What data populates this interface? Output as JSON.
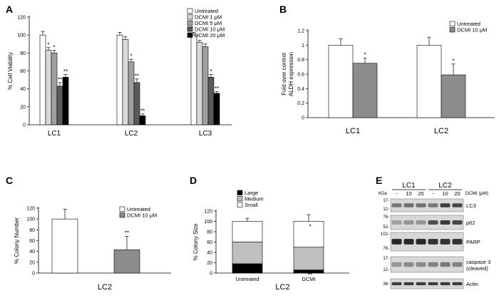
{
  "chart_data": [
    {
      "panel": "A",
      "type": "bar",
      "ylabel": "% Cell Viability",
      "ylim": [
        0,
        120
      ],
      "yticks": [
        0,
        20,
        40,
        60,
        80,
        100,
        120
      ],
      "categories": [
        "LC1",
        "LC2",
        "LC3"
      ],
      "series": [
        {
          "name": "Untreated",
          "color": "#ffffff",
          "values": [
            100,
            100,
            100
          ],
          "errors": [
            4,
            3,
            3
          ]
        },
        {
          "name": "DCMI 1 μM",
          "color": "#d9d9d9",
          "values": [
            83,
            95,
            92
          ],
          "errors": [
            3,
            3,
            2
          ]
        },
        {
          "name": "DCMI 5 μM",
          "color": "#a0a0a0",
          "values": [
            80,
            70,
            87
          ],
          "errors": [
            3,
            3,
            3
          ]
        },
        {
          "name": "DCMI 10 μM",
          "color": "#5a5a5a",
          "values": [
            43,
            47,
            53
          ],
          "errors": [
            4,
            4,
            3
          ]
        },
        {
          "name": "DCMI 20 μM",
          "color": "#000000",
          "values": [
            53,
            10,
            35
          ],
          "errors": [
            3,
            2,
            2
          ]
        }
      ],
      "stars": [
        [
          "",
          "*",
          "*",
          "**",
          "**"
        ],
        [
          "",
          "",
          "*",
          "**",
          "**"
        ],
        [
          "",
          "",
          "",
          "*",
          "**"
        ]
      ],
      "legend": "top-right"
    },
    {
      "panel": "B",
      "type": "bar",
      "ylabel": "Fold over control ALDH expression",
      "ylim": [
        0,
        1.2
      ],
      "yticks": [
        0,
        0.2,
        0.4,
        0.6,
        0.8,
        1,
        1.2
      ],
      "ytick_labels": [
        "0",
        "0.2",
        "0.4",
        "0.6",
        "0.8",
        "1",
        "1.2"
      ],
      "categories": [
        "LC1",
        "LC2"
      ],
      "series": [
        {
          "name": "Untreated",
          "color": "#ffffff",
          "values": [
            1.0,
            1.0
          ],
          "errors": [
            0.09,
            0.11
          ]
        },
        {
          "name": "DCMI 10 μM",
          "color": "#8c8c8c",
          "values": [
            0.75,
            0.59
          ],
          "errors": [
            0.07,
            0.15
          ]
        }
      ],
      "stars": [
        [
          "",
          "*"
        ],
        [
          "",
          "*"
        ]
      ],
      "legend": "top-right"
    },
    {
      "panel": "C",
      "type": "bar",
      "ylabel": "% Colony Number",
      "xlabel": "LC2",
      "ylim": [
        0,
        120
      ],
      "yticks": [
        0,
        20,
        40,
        60,
        80,
        100,
        120
      ],
      "categories": [
        "Untreated",
        "DCMI 10 μM"
      ],
      "values": [
        100,
        43
      ],
      "errors": [
        18,
        25
      ],
      "colors": [
        "#ffffff",
        "#8c8c8c"
      ],
      "stars": [
        "",
        "**"
      ],
      "legend_labels": [
        "Untreated",
        "DCMI 10 μM"
      ],
      "legend": "top-right"
    },
    {
      "panel": "D",
      "type": "bar",
      "stacked": true,
      "ylabel": "% Colony Size",
      "xlabel": "LC2",
      "ylim": [
        0,
        120
      ],
      "yticks": [
        0,
        20,
        40,
        60,
        80,
        100,
        120
      ],
      "categories": [
        "Untreated",
        "DCMI"
      ],
      "series": [
        {
          "name": "Large",
          "color": "#000000",
          "values": [
            18,
            6
          ],
          "errors": [
            3,
            2
          ],
          "stars": [
            "",
            "**"
          ]
        },
        {
          "name": "Medium",
          "color": "#bfbfbf",
          "values": [
            42,
            44
          ],
          "errors": [
            3,
            5
          ],
          "stars": [
            "",
            ""
          ]
        },
        {
          "name": "Small",
          "color": "#ffffff",
          "values": [
            40,
            50
          ],
          "errors": [
            6,
            13
          ],
          "stars": [
            "",
            "*"
          ]
        }
      ],
      "legend": "top-right"
    }
  ],
  "blot": {
    "panel": "E",
    "groups": [
      "LC1",
      "LC2"
    ],
    "lanes": [
      "-",
      "10",
      "20",
      "-",
      "10",
      "20"
    ],
    "treatment_label": "DCMI (μM)",
    "kda_label": "KDa",
    "rows": [
      {
        "name": "LC3",
        "markers": [
          "17-",
          "12-"
        ],
        "intensity": [
          0.55,
          0.6,
          0.6,
          0.55,
          0.85,
          0.8
        ]
      },
      {
        "name": "p62",
        "markers": [
          "76-",
          "52-"
        ],
        "intensity": [
          0.35,
          0.4,
          0.4,
          0.75,
          0.85,
          0.8
        ]
      },
      {
        "name": "PARP",
        "markers": [
          "102-",
          "76-"
        ],
        "intensity": [
          0.95,
          0.95,
          0.95,
          0.9,
          0.9,
          0.9
        ]
      },
      {
        "name": "caspase 3\n(cleaved)",
        "markers": [
          "17-",
          "12-"
        ],
        "intensity": [
          0.4,
          0.45,
          0.45,
          0.5,
          0.55,
          0.5
        ]
      },
      {
        "name": "Actin",
        "markers": [
          "38-"
        ],
        "intensity": [
          0.85,
          0.85,
          0.85,
          0.85,
          0.85,
          0.85
        ]
      }
    ]
  }
}
